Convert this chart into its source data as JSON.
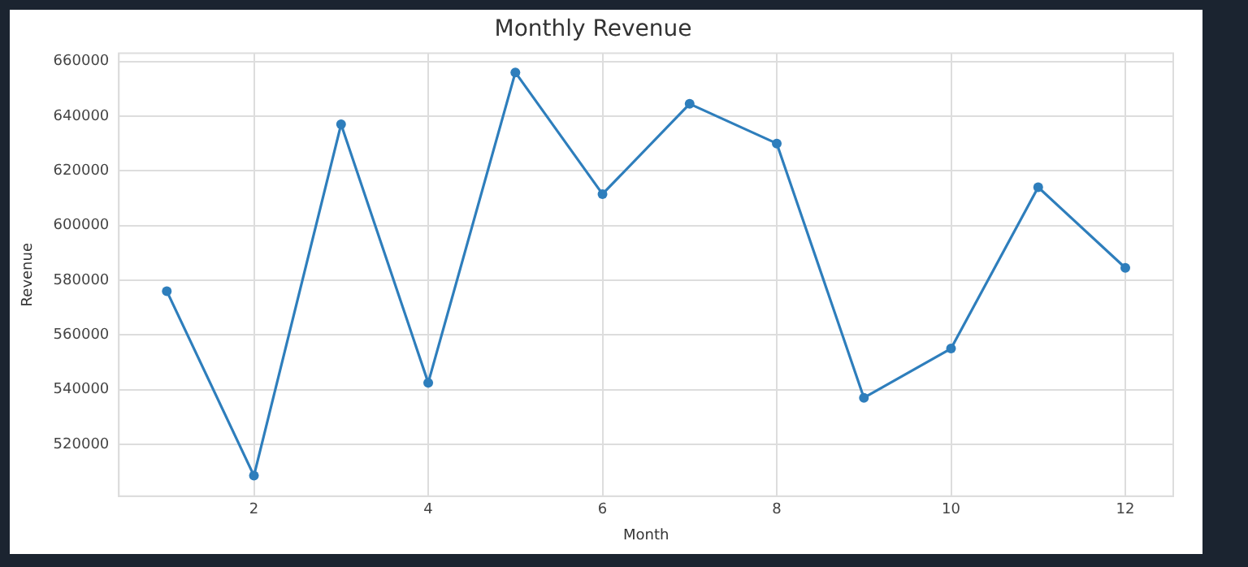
{
  "chart_data": {
    "type": "line",
    "title": "Monthly Revenue",
    "xlabel": "Month",
    "ylabel": "Revenue",
    "x": [
      1,
      2,
      3,
      4,
      5,
      6,
      7,
      8,
      9,
      10,
      11,
      12
    ],
    "series": [
      {
        "color": "#2e7ebc",
        "values": [
          576000,
          508500,
          637000,
          542500,
          656000,
          611500,
          644500,
          630000,
          537000,
          555000,
          614000,
          584500
        ]
      }
    ],
    "xlim": [
      0.45,
      12.55
    ],
    "xticks": [
      2,
      4,
      6,
      8,
      10,
      12
    ],
    "ylim": [
      501000,
      663000
    ],
    "yticks": [
      520000,
      540000,
      560000,
      580000,
      600000,
      620000,
      640000,
      660000
    ],
    "grid": true,
    "marker": "circle",
    "line_style": "solid",
    "legend": false
  }
}
